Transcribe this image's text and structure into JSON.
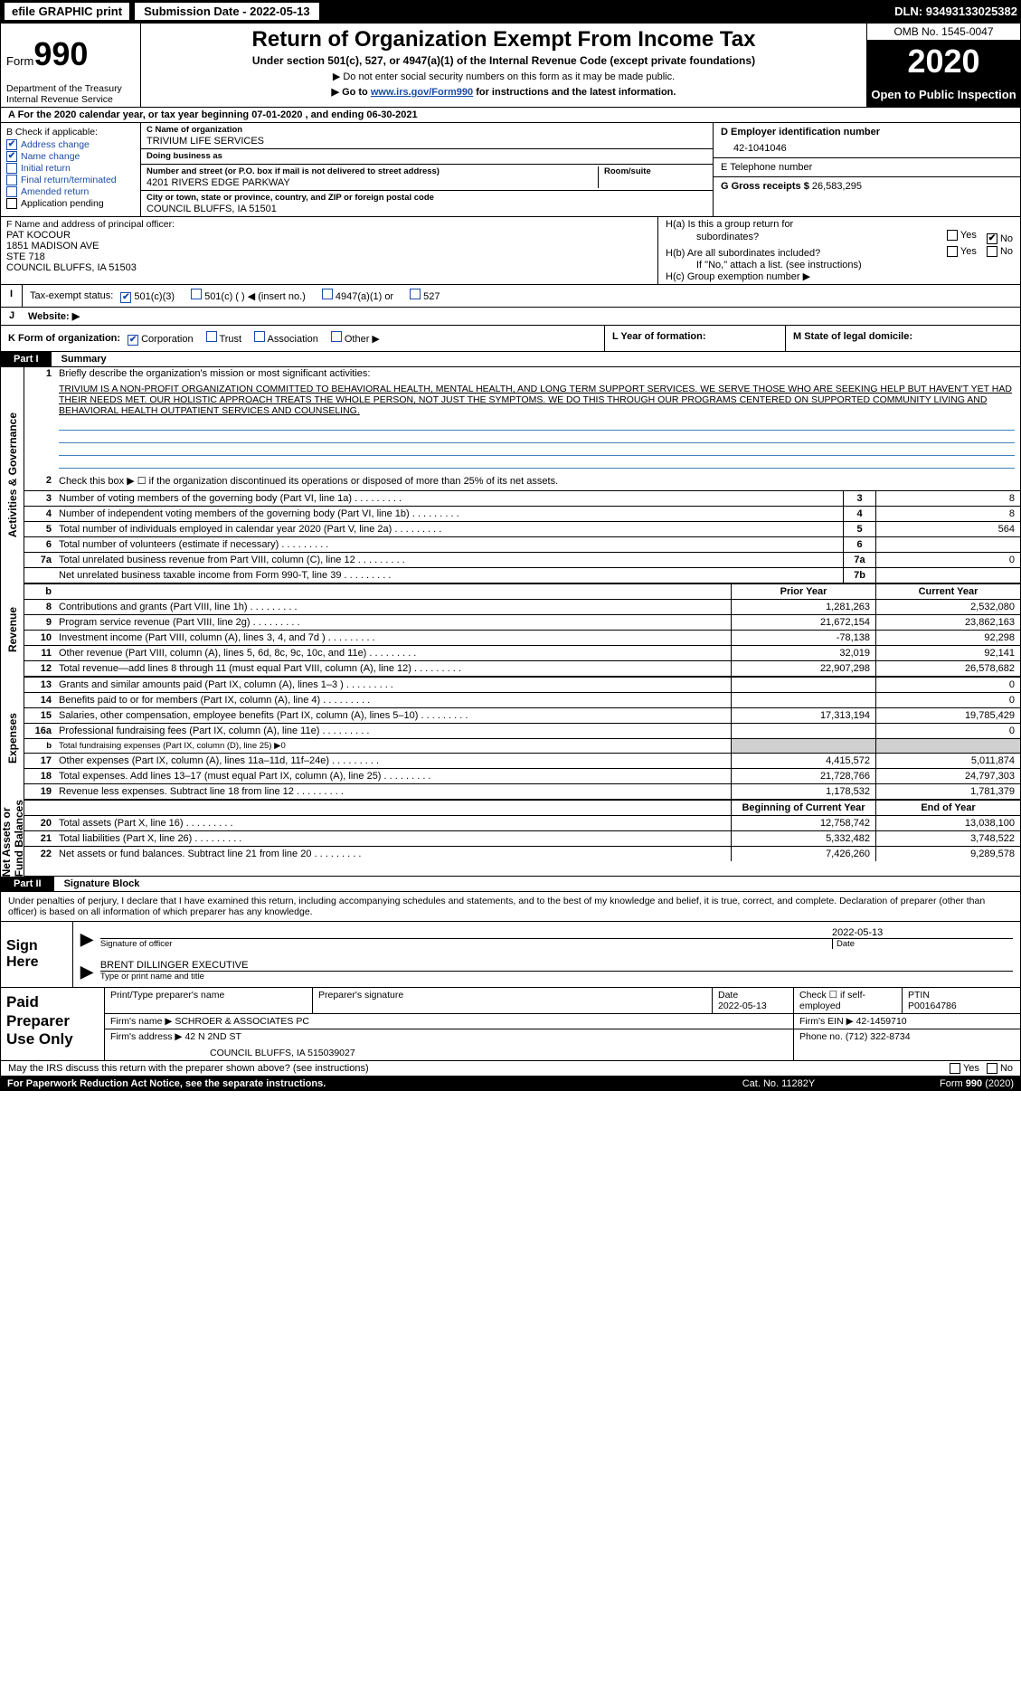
{
  "topbar": {
    "efile": "efile GRAPHIC print",
    "submission_label": "Submission Date - ",
    "submission_date": "2022-05-13",
    "dln_label": "DLN: ",
    "dln": "93493133025382"
  },
  "header": {
    "form_label": "Form",
    "form_num": "990",
    "dept": "Department of the Treasury\nInternal Revenue Service",
    "title": "Return of Organization Exempt From Income Tax",
    "subtitle": "Under section 501(c), 527, or 4947(a)(1) of the Internal Revenue Code (except private foundations)",
    "note1": "▶ Do not enter social security numbers on this form as it may be made public.",
    "note2_pre": "▶ Go to ",
    "note2_link": "www.irs.gov/Form990",
    "note2_post": " for instructions and the latest information.",
    "omb": "OMB No. 1545-0047",
    "year": "2020",
    "open": "Open to Public Inspection"
  },
  "row_a": "A  For the 2020 calendar year, or tax year beginning 07-01-2020    , and ending 06-30-2021",
  "col_b": {
    "title": "B Check if applicable:",
    "items": [
      {
        "label": "Address change",
        "checked": true,
        "color": "blue"
      },
      {
        "label": "Name change",
        "checked": true,
        "color": "blue"
      },
      {
        "label": "Initial return",
        "checked": false,
        "color": "blue"
      },
      {
        "label": "Final return/terminated",
        "checked": false,
        "color": "blue"
      },
      {
        "label": "Amended return",
        "checked": false,
        "color": "blue"
      },
      {
        "label": "Application pending",
        "checked": false,
        "color": "black"
      }
    ]
  },
  "c": {
    "name_cap": "C Name of organization",
    "name": "TRIVIUM LIFE SERVICES",
    "dba_cap": "Doing business as",
    "dba": "",
    "addr_cap": "Number and street (or P.O. box if mail is not delivered to street address)",
    "room_cap": "Room/suite",
    "addr": "4201 RIVERS EDGE PARKWAY",
    "city_cap": "City or town, state or province, country, and ZIP or foreign postal code",
    "city": "COUNCIL BLUFFS, IA  51501"
  },
  "d": {
    "cap": "D Employer identification number",
    "val": "42-1041046"
  },
  "e": {
    "cap": "E Telephone number",
    "val": ""
  },
  "g": {
    "cap": "G Gross receipts $ ",
    "val": "26,583,295"
  },
  "f": {
    "cap": "F  Name and address of principal officer:",
    "lines": [
      "PAT KOCOUR",
      "1851 MADISON AVE",
      "STE 718",
      "COUNCIL BLUFFS, IA  51503"
    ]
  },
  "h": {
    "a_label": "H(a)  Is this a group return for",
    "a_label2": "subordinates?",
    "a_yes": "Yes",
    "a_no": "No",
    "a_no_checked": true,
    "b_label": "H(b)  Are all subordinates included?",
    "b_yes": "Yes",
    "b_no": "No",
    "b_note": "If \"No,\" attach a list. (see instructions)",
    "c_label": "H(c)  Group exemption number ▶"
  },
  "i": {
    "label": "Tax-exempt status:",
    "opts": [
      "501(c)(3)",
      "501(c) (  ) ◀ (insert no.)",
      "4947(a)(1) or",
      "527"
    ],
    "checked_idx": 0
  },
  "j": {
    "label": "Website: ▶",
    "val": ""
  },
  "k": {
    "label": "K Form of organization:",
    "opts": [
      "Corporation",
      "Trust",
      "Association",
      "Other ▶"
    ],
    "checked_idx": 0,
    "l": "L Year of formation:",
    "m": "M State of legal domicile:"
  },
  "part1": {
    "tab": "Part I",
    "title": "Summary"
  },
  "mission_label": "Briefly describe the organization's mission or most significant activities:",
  "mission": "TRIVIUM IS A NON-PROFIT ORGANIZATION COMMITTED TO BEHAVIORAL HEALTH, MENTAL HEALTH, AND LONG TERM SUPPORT SERVICES. WE SERVE THOSE WHO ARE SEEKING HELP BUT HAVEN'T YET HAD THEIR NEEDS MET. OUR HOLISTIC APPROACH TREATS THE WHOLE PERSON, NOT JUST THE SYMPTOMS. WE DO THIS THROUGH OUR PROGRAMS CENTERED ON SUPPORTED COMMUNITY LIVING AND BEHAVIORAL HEALTH OUTPATIENT SERVICES AND COUNSELING.",
  "line2": "Check this box ▶ ☐  if the organization discontinued its operations or disposed of more than 25% of its net assets.",
  "gov_lines": [
    {
      "n": "3",
      "t": "Number of voting members of the governing body (Part VI, line 1a)",
      "box": "3",
      "v": "8"
    },
    {
      "n": "4",
      "t": "Number of independent voting members of the governing body (Part VI, line 1b)",
      "box": "4",
      "v": "8"
    },
    {
      "n": "5",
      "t": "Total number of individuals employed in calendar year 2020 (Part V, line 2a)",
      "box": "5",
      "v": "564"
    },
    {
      "n": "6",
      "t": "Total number of volunteers (estimate if necessary)",
      "box": "6",
      "v": ""
    },
    {
      "n": "7a",
      "t": "Total unrelated business revenue from Part VIII, column (C), line 12",
      "box": "7a",
      "v": "0"
    },
    {
      "n": "",
      "t": "Net unrelated business taxable income from Form 990-T, line 39",
      "box": "7b",
      "v": ""
    }
  ],
  "rev_hdr": {
    "b": "b",
    "p": "Prior Year",
    "c": "Current Year"
  },
  "rev_lines": [
    {
      "n": "8",
      "t": "Contributions and grants (Part VIII, line 1h)",
      "p": "1,281,263",
      "c": "2,532,080"
    },
    {
      "n": "9",
      "t": "Program service revenue (Part VIII, line 2g)",
      "p": "21,672,154",
      "c": "23,862,163"
    },
    {
      "n": "10",
      "t": "Investment income (Part VIII, column (A), lines 3, 4, and 7d )",
      "p": "-78,138",
      "c": "92,298"
    },
    {
      "n": "11",
      "t": "Other revenue (Part VIII, column (A), lines 5, 6d, 8c, 9c, 10c, and 11e)",
      "p": "32,019",
      "c": "92,141"
    },
    {
      "n": "12",
      "t": "Total revenue—add lines 8 through 11 (must equal Part VIII, column (A), line 12)",
      "p": "22,907,298",
      "c": "26,578,682"
    }
  ],
  "exp_lines": [
    {
      "n": "13",
      "t": "Grants and similar amounts paid (Part IX, column (A), lines 1–3 )",
      "p": "",
      "c": "0"
    },
    {
      "n": "14",
      "t": "Benefits paid to or for members (Part IX, column (A), line 4)",
      "p": "",
      "c": "0"
    },
    {
      "n": "15",
      "t": "Salaries, other compensation, employee benefits (Part IX, column (A), lines 5–10)",
      "p": "17,313,194",
      "c": "19,785,429"
    },
    {
      "n": "16a",
      "t": "Professional fundraising fees (Part IX, column (A), line 11e)",
      "p": "",
      "c": "0"
    },
    {
      "n": "b",
      "t": "Total fundraising expenses (Part IX, column (D), line 25) ▶0",
      "p": "shade",
      "c": "shade",
      "small": true
    },
    {
      "n": "17",
      "t": "Other expenses (Part IX, column (A), lines 11a–11d, 11f–24e)",
      "p": "4,415,572",
      "c": "5,011,874"
    },
    {
      "n": "18",
      "t": "Total expenses. Add lines 13–17 (must equal Part IX, column (A), line 25)",
      "p": "21,728,766",
      "c": "24,797,303"
    },
    {
      "n": "19",
      "t": "Revenue less expenses. Subtract line 18 from line 12",
      "p": "1,178,532",
      "c": "1,781,379"
    }
  ],
  "net_hdr": {
    "p": "Beginning of Current Year",
    "c": "End of Year"
  },
  "net_lines": [
    {
      "n": "20",
      "t": "Total assets (Part X, line 16)",
      "p": "12,758,742",
      "c": "13,038,100"
    },
    {
      "n": "21",
      "t": "Total liabilities (Part X, line 26)",
      "p": "5,332,482",
      "c": "3,748,522"
    },
    {
      "n": "22",
      "t": "Net assets or fund balances. Subtract line 21 from line 20",
      "p": "7,426,260",
      "c": "9,289,578"
    }
  ],
  "vlabels": {
    "gov": "Activities & Governance",
    "rev": "Revenue",
    "exp": "Expenses",
    "net": "Net Assets or\nFund Balances"
  },
  "part2": {
    "tab": "Part II",
    "title": "Signature Block"
  },
  "sig_intro": "Under penalties of perjury, I declare that I have examined this return, including accompanying schedules and statements, and to the best of my knowledge and belief, it is true, correct, and complete. Declaration of preparer (other than officer) is based on all information of which preparer has any knowledge.",
  "sign": {
    "left1": "Sign",
    "left2": "Here",
    "date": "2022-05-13",
    "sig_cap": "Signature of officer",
    "date_cap": "Date",
    "name": "BRENT DILLINGER  EXECUTIVE",
    "name_cap": "Type or print name and title"
  },
  "prep": {
    "left": "Paid\nPreparer\nUse Only",
    "h1": "Print/Type preparer's name",
    "h2": "Preparer's signature",
    "h3": "Date",
    "h3v": "2022-05-13",
    "h4": "Check ☐ if self-employed",
    "h5": "PTIN",
    "h5v": "P00164786",
    "firm_label": "Firm's name    ▶",
    "firm": "SCHROER & ASSOCIATES PC",
    "ein_label": "Firm's EIN ▶",
    "ein": "42-1459710",
    "addr_label": "Firm's address ▶",
    "addr1": "42 N 2ND ST",
    "addr2": "COUNCIL BLUFFS, IA  515039027",
    "phone_label": "Phone no.",
    "phone": "(712) 322-8734"
  },
  "discuss": {
    "t": "May the IRS discuss this return with the preparer shown above? (see instructions)",
    "yes": "Yes",
    "no": "No"
  },
  "footer": {
    "l": "For Paperwork Reduction Act Notice, see the separate instructions.",
    "m": "Cat. No. 11282Y",
    "r": "Form 990 (2020)"
  }
}
